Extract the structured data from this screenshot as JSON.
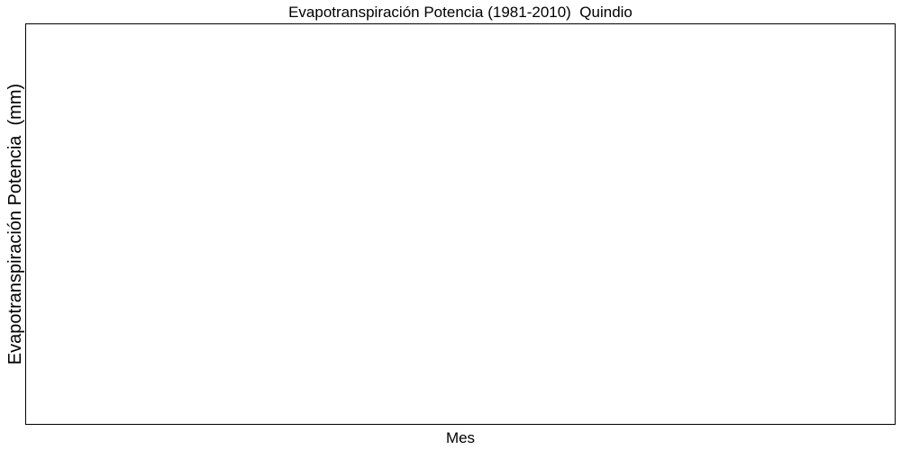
{
  "chart_data": {
    "type": "line",
    "title": "Evapotranspiración Potencia (1981-2010)  Quindio",
    "xlabel": "Mes",
    "ylabel": "Evapotranspiración Potencia  (mm)",
    "categories": [],
    "series": [],
    "grid": false,
    "legend": "none"
  }
}
